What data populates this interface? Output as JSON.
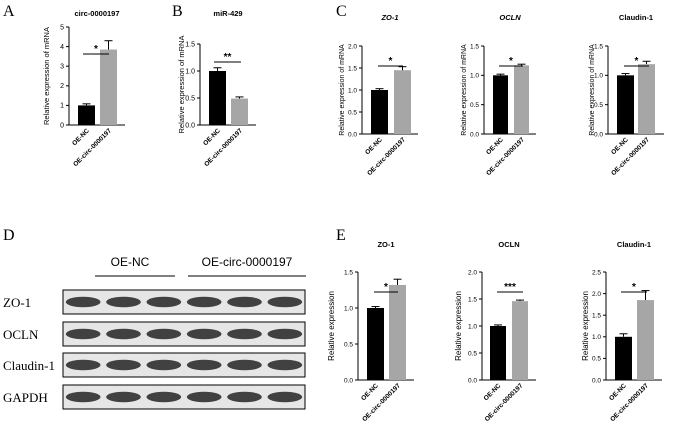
{
  "panels": {
    "A": "A",
    "B": "B",
    "C": "C",
    "D": "D",
    "E": "E"
  },
  "chart_data": [
    {
      "panel": "A",
      "type": "bar",
      "title": "circ-0000197",
      "title_italic": false,
      "ylabel": "Relative expression of mRNA",
      "xlabel": "",
      "categories": [
        "OE-NC",
        "OE-circ-0000197"
      ],
      "values": [
        1.0,
        3.85
      ],
      "errors": [
        0.08,
        0.45
      ],
      "ylim": [
        0,
        5
      ],
      "yticks": [
        "0",
        "1",
        "2",
        "3",
        "4",
        "5"
      ],
      "significance": "*",
      "colors": [
        "#000000",
        "#a6a6a6"
      ]
    },
    {
      "panel": "B",
      "type": "bar",
      "title": "miR-429",
      "title_italic": false,
      "ylabel": "Relative expression of mRNA",
      "xlabel": "",
      "categories": [
        "OE-NC",
        "OE-circ-0000197"
      ],
      "values": [
        1.0,
        0.49
      ],
      "errors": [
        0.06,
        0.03
      ],
      "ylim": [
        0,
        1.5
      ],
      "yticks": [
        "0.0",
        "0.5",
        "1.0",
        "1.5"
      ],
      "significance": "**",
      "colors": [
        "#000000",
        "#a6a6a6"
      ]
    },
    {
      "panel": "C1",
      "type": "bar",
      "title": "ZO-1",
      "title_italic": true,
      "ylabel": "Relative expression of mRNA",
      "xlabel": "",
      "categories": [
        "OE-NC",
        "OE-circ-0000197"
      ],
      "values": [
        1.0,
        1.45
      ],
      "errors": [
        0.03,
        0.08
      ],
      "ylim": [
        0,
        2.0
      ],
      "yticks": [
        "0.0",
        "0.5",
        "1.0",
        "1.5",
        "2.0"
      ],
      "significance": "*",
      "colors": [
        "#000000",
        "#a6a6a6"
      ]
    },
    {
      "panel": "C2",
      "type": "bar",
      "title": "OCLN",
      "title_italic": true,
      "ylabel": "Relative expression of mRNA",
      "xlabel": "",
      "categories": [
        "OE-NC",
        "OE-circ-0000197"
      ],
      "values": [
        1.0,
        1.17
      ],
      "errors": [
        0.02,
        0.02
      ],
      "ylim": [
        0,
        1.5
      ],
      "yticks": [
        "0.0",
        "0.5",
        "1.0",
        "1.5"
      ],
      "significance": "*",
      "colors": [
        "#000000",
        "#a6a6a6"
      ]
    },
    {
      "panel": "C3",
      "type": "bar",
      "title": "Claudin-1",
      "title_italic": false,
      "ylabel": "Relative expression of mRNA",
      "xlabel": "",
      "categories": [
        "OE-NC",
        "OE-circ-0000197"
      ],
      "values": [
        1.0,
        1.19
      ],
      "errors": [
        0.03,
        0.05
      ],
      "ylim": [
        0,
        1.5
      ],
      "yticks": [
        "0.0",
        "0.5",
        "1.0",
        "1.5"
      ],
      "significance": "*",
      "colors": [
        "#000000",
        "#a6a6a6"
      ]
    },
    {
      "panel": "E1",
      "type": "bar",
      "title": "ZO-1",
      "title_italic": false,
      "ylabel": "Relative expression",
      "xlabel": "",
      "categories": [
        "OE-NC",
        "OE-circ-0000197"
      ],
      "values": [
        1.0,
        1.32
      ],
      "errors": [
        0.02,
        0.08
      ],
      "ylim": [
        0,
        1.5
      ],
      "yticks": [
        "0.0",
        "0.5",
        "1.0",
        "1.5"
      ],
      "significance": "*",
      "colors": [
        "#000000",
        "#a6a6a6"
      ]
    },
    {
      "panel": "E2",
      "type": "bar",
      "title": "OCLN",
      "title_italic": false,
      "ylabel": "Relative expression",
      "xlabel": "",
      "categories": [
        "OE-NC",
        "OE-circ-0000197"
      ],
      "values": [
        1.0,
        1.46
      ],
      "errors": [
        0.02,
        0.02
      ],
      "ylim": [
        0,
        2.0
      ],
      "yticks": [
        "0.0",
        "0.5",
        "1.0",
        "1.5",
        "2.0"
      ],
      "significance": "***",
      "colors": [
        "#000000",
        "#a6a6a6"
      ]
    },
    {
      "panel": "E3",
      "type": "bar",
      "title": "Claudin-1",
      "title_italic": false,
      "ylabel": "Relative expression",
      "xlabel": "",
      "categories": [
        "OE-NC",
        "OE-circ-0000197"
      ],
      "values": [
        1.0,
        1.85
      ],
      "errors": [
        0.07,
        0.22
      ],
      "ylim": [
        0,
        2.5
      ],
      "yticks": [
        "0.0",
        "0.5",
        "1.0",
        "1.5",
        "2.0",
        "2.5"
      ],
      "significance": "*",
      "colors": [
        "#000000",
        "#a6a6a6"
      ]
    }
  ],
  "western_blot": {
    "group_labels": [
      "OE-NC",
      "OE-circ-0000197"
    ],
    "bands": [
      "ZO-1",
      "OCLN",
      "Claudin-1",
      "GAPDH"
    ],
    "lanes_per_group": 3
  }
}
